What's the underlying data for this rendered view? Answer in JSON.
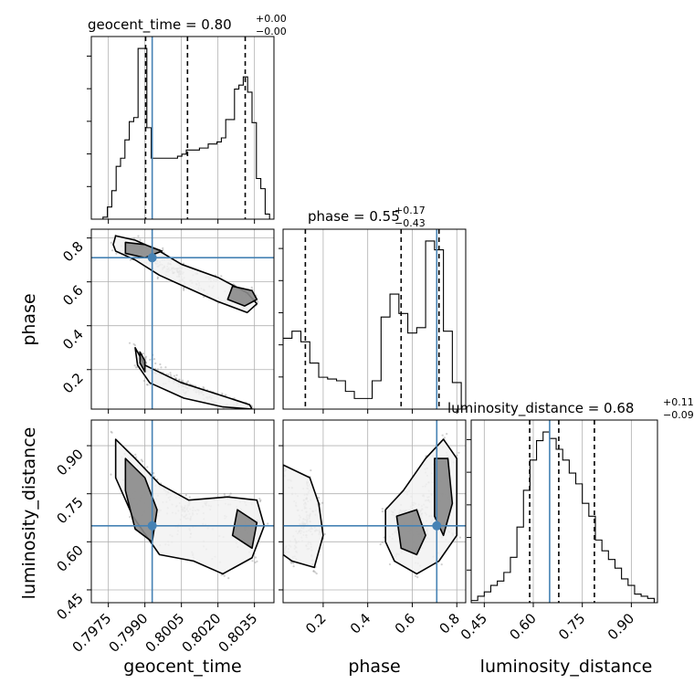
{
  "chart_data": {
    "type": "corner",
    "parameters": [
      "geocent_time",
      "phase",
      "luminosity_distance"
    ],
    "truths": {
      "geocent_time": 0.7993,
      "phase": 0.71,
      "luminosity_distance": 0.65
    },
    "colors": {
      "truth": "#4682b4",
      "hist": "#000000",
      "density": "#555555"
    },
    "grid": true,
    "titles": [
      {
        "name": "geocent_time",
        "text": "geocent_time = 0.80",
        "plus": "+0.00",
        "minus": "−0.00"
      },
      {
        "name": "phase",
        "text": "phase = 0.55",
        "plus": "+0.17",
        "minus": "−0.43"
      },
      {
        "name": "luminosity_distance",
        "text": "luminosity_distance = 0.68",
        "plus": "+0.11",
        "minus": "−0.09"
      }
    ],
    "axis_labels": {
      "x": [
        "geocent_time",
        "phase",
        "luminosity_distance"
      ],
      "y": [
        "phase",
        "luminosity_distance"
      ]
    },
    "ranges": {
      "geocent_time": [
        0.7968,
        0.8043
      ],
      "phase": [
        0.02,
        0.84
      ],
      "luminosity_distance": [
        0.41,
        0.98
      ]
    },
    "ticks": {
      "geocent_time": [
        0.7975,
        0.799,
        0.8005,
        0.802,
        0.8035
      ],
      "phase": [
        0.2,
        0.4,
        0.6,
        0.8
      ],
      "luminosity_distance": [
        0.45,
        0.6,
        0.75,
        0.9
      ]
    },
    "tick_labels": {
      "geocent_time": [
        "0.7975",
        "0.7990",
        "0.8005",
        "0.8020",
        "0.8035"
      ],
      "phase": [
        "0.2",
        "0.4",
        "0.6",
        "0.8"
      ],
      "luminosity_distance": [
        "0.45",
        "0.60",
        "0.75",
        "0.90"
      ]
    },
    "quantiles": {
      "geocent_time": [
        0.79903,
        0.80075,
        0.80312
      ],
      "phase": [
        0.12,
        0.55,
        0.72
      ],
      "luminosity_distance": [
        0.589,
        0.678,
        0.787
      ]
    },
    "histograms": {
      "geocent_time": {
        "edges": [
          0.7971,
          0.79728,
          0.79746,
          0.79764,
          0.79782,
          0.798,
          0.79818,
          0.79836,
          0.79854,
          0.79872,
          0.7989,
          0.79908,
          0.79926,
          0.79944,
          0.79962,
          0.7998,
          0.79998,
          0.80016,
          0.80034,
          0.80052,
          0.8007,
          0.80088,
          0.80106,
          0.80124,
          0.80142,
          0.8016,
          0.80178,
          0.80196,
          0.80214,
          0.80232,
          0.8025,
          0.80268,
          0.80286,
          0.80304,
          0.80322,
          0.8034,
          0.80358,
          0.80376,
          0.80394,
          0.80412,
          0.8043
        ],
        "counts": [
          0,
          2,
          12,
          28,
          52,
          60,
          78,
          96,
          100,
          168,
          168,
          90,
          60,
          60,
          60,
          60,
          60,
          60,
          62,
          64,
          68,
          68,
          68,
          70,
          70,
          74,
          74,
          76,
          80,
          98,
          98,
          128,
          132,
          140,
          125,
          95,
          40,
          30,
          5,
          0
        ]
      },
      "phase": {
        "edges": [
          0.02,
          0.06,
          0.1,
          0.14,
          0.18,
          0.22,
          0.26,
          0.3,
          0.34,
          0.38,
          0.42,
          0.46,
          0.5,
          0.54,
          0.58,
          0.62,
          0.66,
          0.7,
          0.74,
          0.78,
          0.82
        ],
        "counts": [
          40,
          44,
          38,
          26,
          18,
          17,
          16,
          10,
          6,
          6,
          16,
          52,
          65,
          54,
          43,
          46,
          95,
          90,
          44,
          15
        ]
      },
      "luminosity_distance": {
        "edges": [
          0.41,
          0.43,
          0.45,
          0.47,
          0.49,
          0.51,
          0.53,
          0.55,
          0.57,
          0.59,
          0.61,
          0.63,
          0.65,
          0.67,
          0.69,
          0.71,
          0.73,
          0.75,
          0.77,
          0.79,
          0.81,
          0.83,
          0.85,
          0.87,
          0.89,
          0.91,
          0.93,
          0.95,
          0.97
        ],
        "counts": [
          2,
          6,
          10,
          16,
          20,
          28,
          42,
          70,
          104,
          132,
          150,
          158,
          152,
          142,
          132,
          120,
          110,
          92,
          80,
          58,
          48,
          40,
          32,
          22,
          16,
          8,
          6,
          4
        ]
      }
    },
    "contours_2d": [
      {
        "x": "geocent_time",
        "y": "phase",
        "contours": [
          {
            "level": "outer",
            "x": [
              0.7978,
              0.7986,
              0.7996,
              0.8005,
              0.802,
              0.8032,
              0.8036,
              0.8032,
              0.802,
              0.8006,
              0.7996,
              0.7986,
              0.7978,
              0.7977
            ],
            "y": [
              0.81,
              0.79,
              0.74,
              0.68,
              0.62,
              0.55,
              0.5,
              0.46,
              0.51,
              0.58,
              0.63,
              0.7,
              0.74,
              0.77
            ]
          },
          {
            "level": "inner",
            "x": [
              0.7982,
              0.799,
              0.7997,
              0.799,
              0.7982
            ],
            "y": [
              0.78,
              0.77,
              0.74,
              0.71,
              0.73
            ]
          },
          {
            "level": "inner",
            "x": [
              0.8026,
              0.8034,
              0.8036,
              0.8031,
              0.8024
            ],
            "y": [
              0.58,
              0.56,
              0.52,
              0.49,
              0.52
            ]
          },
          {
            "level": "outer",
            "x": [
              0.7986,
              0.799,
              0.8005,
              0.8022,
              0.8033,
              0.8034,
              0.8022,
              0.8006,
              0.7992,
              0.7987
            ],
            "y": [
              0.3,
              0.22,
              0.14,
              0.08,
              0.04,
              0.02,
              0.03,
              0.07,
              0.14,
              0.22
            ]
          },
          {
            "level": "inner",
            "x": [
              0.7988,
              0.799,
              0.799,
              0.7988
            ],
            "y": [
              0.28,
              0.24,
              0.19,
              0.23
            ]
          }
        ]
      },
      {
        "x": "geocent_time",
        "y": "luminosity_distance",
        "contours": [
          {
            "level": "outer",
            "x": [
              0.7978,
              0.7986,
              0.7996,
              0.8008,
              0.8024,
              0.8036,
              0.8039,
              0.8034,
              0.8022,
              0.801,
              0.7996,
              0.7985,
              0.7978
            ],
            "y": [
              0.92,
              0.86,
              0.78,
              0.73,
              0.74,
              0.73,
              0.65,
              0.55,
              0.5,
              0.54,
              0.56,
              0.68,
              0.8
            ]
          },
          {
            "level": "inner",
            "x": [
              0.7982,
              0.799,
              0.7995,
              0.7993,
              0.7986,
              0.7982
            ],
            "y": [
              0.86,
              0.8,
              0.7,
              0.6,
              0.64,
              0.76
            ]
          },
          {
            "level": "inner",
            "x": [
              0.8028,
              0.8036,
              0.8034,
              0.8026
            ],
            "y": [
              0.7,
              0.66,
              0.58,
              0.62
            ]
          }
        ]
      },
      {
        "x": "phase",
        "y": "luminosity_distance",
        "contours": [
          {
            "level": "outer",
            "x": [
              0.02,
              0.14,
              0.18,
              0.2,
              0.16,
              0.06,
              0.02
            ],
            "y": [
              0.84,
              0.8,
              0.72,
              0.62,
              0.52,
              0.54,
              0.56
            ]
          },
          {
            "level": "outer",
            "x": [
              0.48,
              0.56,
              0.66,
              0.74,
              0.8,
              0.8,
              0.72,
              0.62,
              0.52,
              0.48
            ],
            "y": [
              0.7,
              0.76,
              0.86,
              0.92,
              0.86,
              0.62,
              0.54,
              0.5,
              0.54,
              0.6
            ]
          },
          {
            "level": "inner",
            "x": [
              0.53,
              0.62,
              0.66,
              0.62,
              0.55
            ],
            "y": [
              0.68,
              0.7,
              0.62,
              0.56,
              0.58
            ]
          },
          {
            "level": "inner",
            "x": [
              0.7,
              0.76,
              0.78,
              0.74,
              0.7
            ],
            "y": [
              0.86,
              0.86,
              0.72,
              0.62,
              0.68
            ]
          }
        ]
      }
    ]
  }
}
